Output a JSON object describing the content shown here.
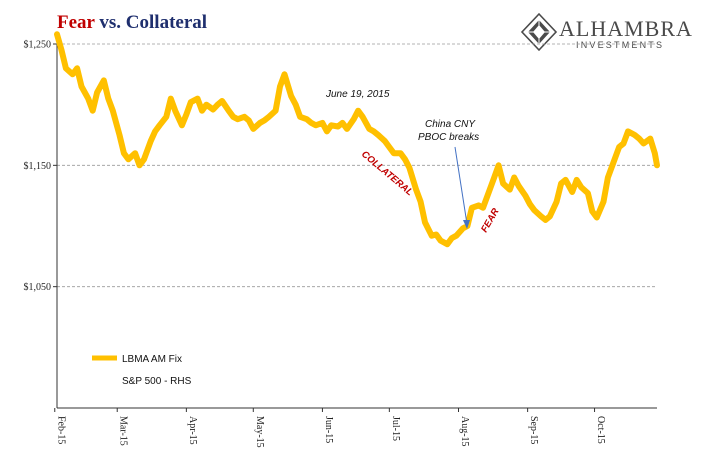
{
  "title": {
    "accent": "Fear",
    "rest": " vs. Collateral"
  },
  "logo": {
    "name": "ALHAMBRA",
    "sub": "INVESTMENTS",
    "icon": "alhambra-diamond-logo-icon"
  },
  "chart_data": {
    "type": "line",
    "x_tick_labels": [
      "Feb-15",
      "Mar-15",
      "Apr-15",
      "May-15",
      "Jun-15",
      "Jul-15",
      "Aug-15",
      "Sep-15",
      "Oct-15"
    ],
    "y_tick_labels": [
      "$1,250",
      "$1,150",
      "$1,050"
    ],
    "ylim": [
      950,
      1250
    ],
    "xlim": [
      "2015-02-02",
      "2015-10-29"
    ],
    "grid": "horizontal dashed",
    "legend_placement": "bottom-left",
    "series": [
      {
        "name": "LBMA AM Fix",
        "color": "#ffc000",
        "x": [
          "2015-02-02",
          "2015-02-04",
          "2015-02-06",
          "2015-02-09",
          "2015-02-11",
          "2015-02-13",
          "2015-02-16",
          "2015-02-18",
          "2015-02-20",
          "2015-02-23",
          "2015-02-25",
          "2015-02-27",
          "2015-03-02",
          "2015-03-04",
          "2015-03-06",
          "2015-03-09",
          "2015-03-11",
          "2015-03-13",
          "2015-03-16",
          "2015-03-18",
          "2015-03-20",
          "2015-03-23",
          "2015-03-25",
          "2015-03-27",
          "2015-03-30",
          "2015-04-01",
          "2015-04-03",
          "2015-04-06",
          "2015-04-08",
          "2015-04-10",
          "2015-04-13",
          "2015-04-15",
          "2015-04-17",
          "2015-04-20",
          "2015-04-22",
          "2015-04-24",
          "2015-04-27",
          "2015-04-29",
          "2015-05-01",
          "2015-05-04",
          "2015-05-06",
          "2015-05-08",
          "2015-05-11",
          "2015-05-13",
          "2015-05-15",
          "2015-05-18",
          "2015-05-20",
          "2015-05-22",
          "2015-05-25",
          "2015-05-27",
          "2015-05-29",
          "2015-06-01",
          "2015-06-03",
          "2015-06-05",
          "2015-06-08",
          "2015-06-10",
          "2015-06-12",
          "2015-06-15",
          "2015-06-17",
          "2015-06-19",
          "2015-06-22",
          "2015-06-24",
          "2015-06-26",
          "2015-06-29",
          "2015-07-01",
          "2015-07-03",
          "2015-07-06",
          "2015-07-08",
          "2015-07-10",
          "2015-07-13",
          "2015-07-15",
          "2015-07-17",
          "2015-07-20",
          "2015-07-22",
          "2015-07-24",
          "2015-07-27",
          "2015-07-29",
          "2015-07-31",
          "2015-08-03",
          "2015-08-05",
          "2015-08-07",
          "2015-08-10",
          "2015-08-12",
          "2015-08-14",
          "2015-08-17",
          "2015-08-19",
          "2015-08-21",
          "2015-08-24",
          "2015-08-26",
          "2015-08-28",
          "2015-08-31",
          "2015-09-02",
          "2015-09-04",
          "2015-09-07",
          "2015-09-09",
          "2015-09-11",
          "2015-09-14",
          "2015-09-16",
          "2015-09-18",
          "2015-09-21",
          "2015-09-23",
          "2015-09-25",
          "2015-09-28",
          "2015-09-30",
          "2015-10-02",
          "2015-10-05",
          "2015-10-07",
          "2015-10-09",
          "2015-10-12",
          "2015-10-14",
          "2015-10-16",
          "2015-10-19",
          "2015-10-21",
          "2015-10-23",
          "2015-10-26",
          "2015-10-28",
          "2015-10-29"
        ],
        "values": [
          1260,
          1245,
          1230,
          1225,
          1230,
          1215,
          1205,
          1195,
          1210,
          1220,
          1205,
          1195,
          1175,
          1160,
          1155,
          1160,
          1150,
          1155,
          1170,
          1178,
          1183,
          1190,
          1205,
          1195,
          1183,
          1192,
          1202,
          1205,
          1195,
          1200,
          1196,
          1200,
          1203,
          1195,
          1190,
          1188,
          1190,
          1187,
          1180,
          1185,
          1187,
          1190,
          1195,
          1215,
          1225,
          1207,
          1200,
          1190,
          1188,
          1185,
          1183,
          1185,
          1178,
          1183,
          1182,
          1185,
          1180,
          1188,
          1195,
          1190,
          1180,
          1178,
          1175,
          1170,
          1165,
          1160,
          1160,
          1155,
          1148,
          1130,
          1120,
          1103,
          1092,
          1093,
          1088,
          1085,
          1090,
          1092,
          1098,
          1100,
          1115,
          1117,
          1115,
          1125,
          1140,
          1150,
          1135,
          1130,
          1140,
          1133,
          1125,
          1118,
          1113,
          1108,
          1105,
          1108,
          1120,
          1135,
          1138,
          1128,
          1138,
          1132,
          1127,
          1112,
          1107,
          1120,
          1140,
          1150,
          1165,
          1168,
          1178,
          1175,
          1172,
          1168,
          1172,
          1160,
          1150
        ]
      },
      {
        "name": "S&P 500 - RHS"
      }
    ],
    "annotations": {
      "date": "June 19, 2015",
      "china_line1": "China CNY",
      "china_line2": "PBOC breaks",
      "collateral": "COLLATERAL",
      "fear": "FEAR"
    }
  }
}
